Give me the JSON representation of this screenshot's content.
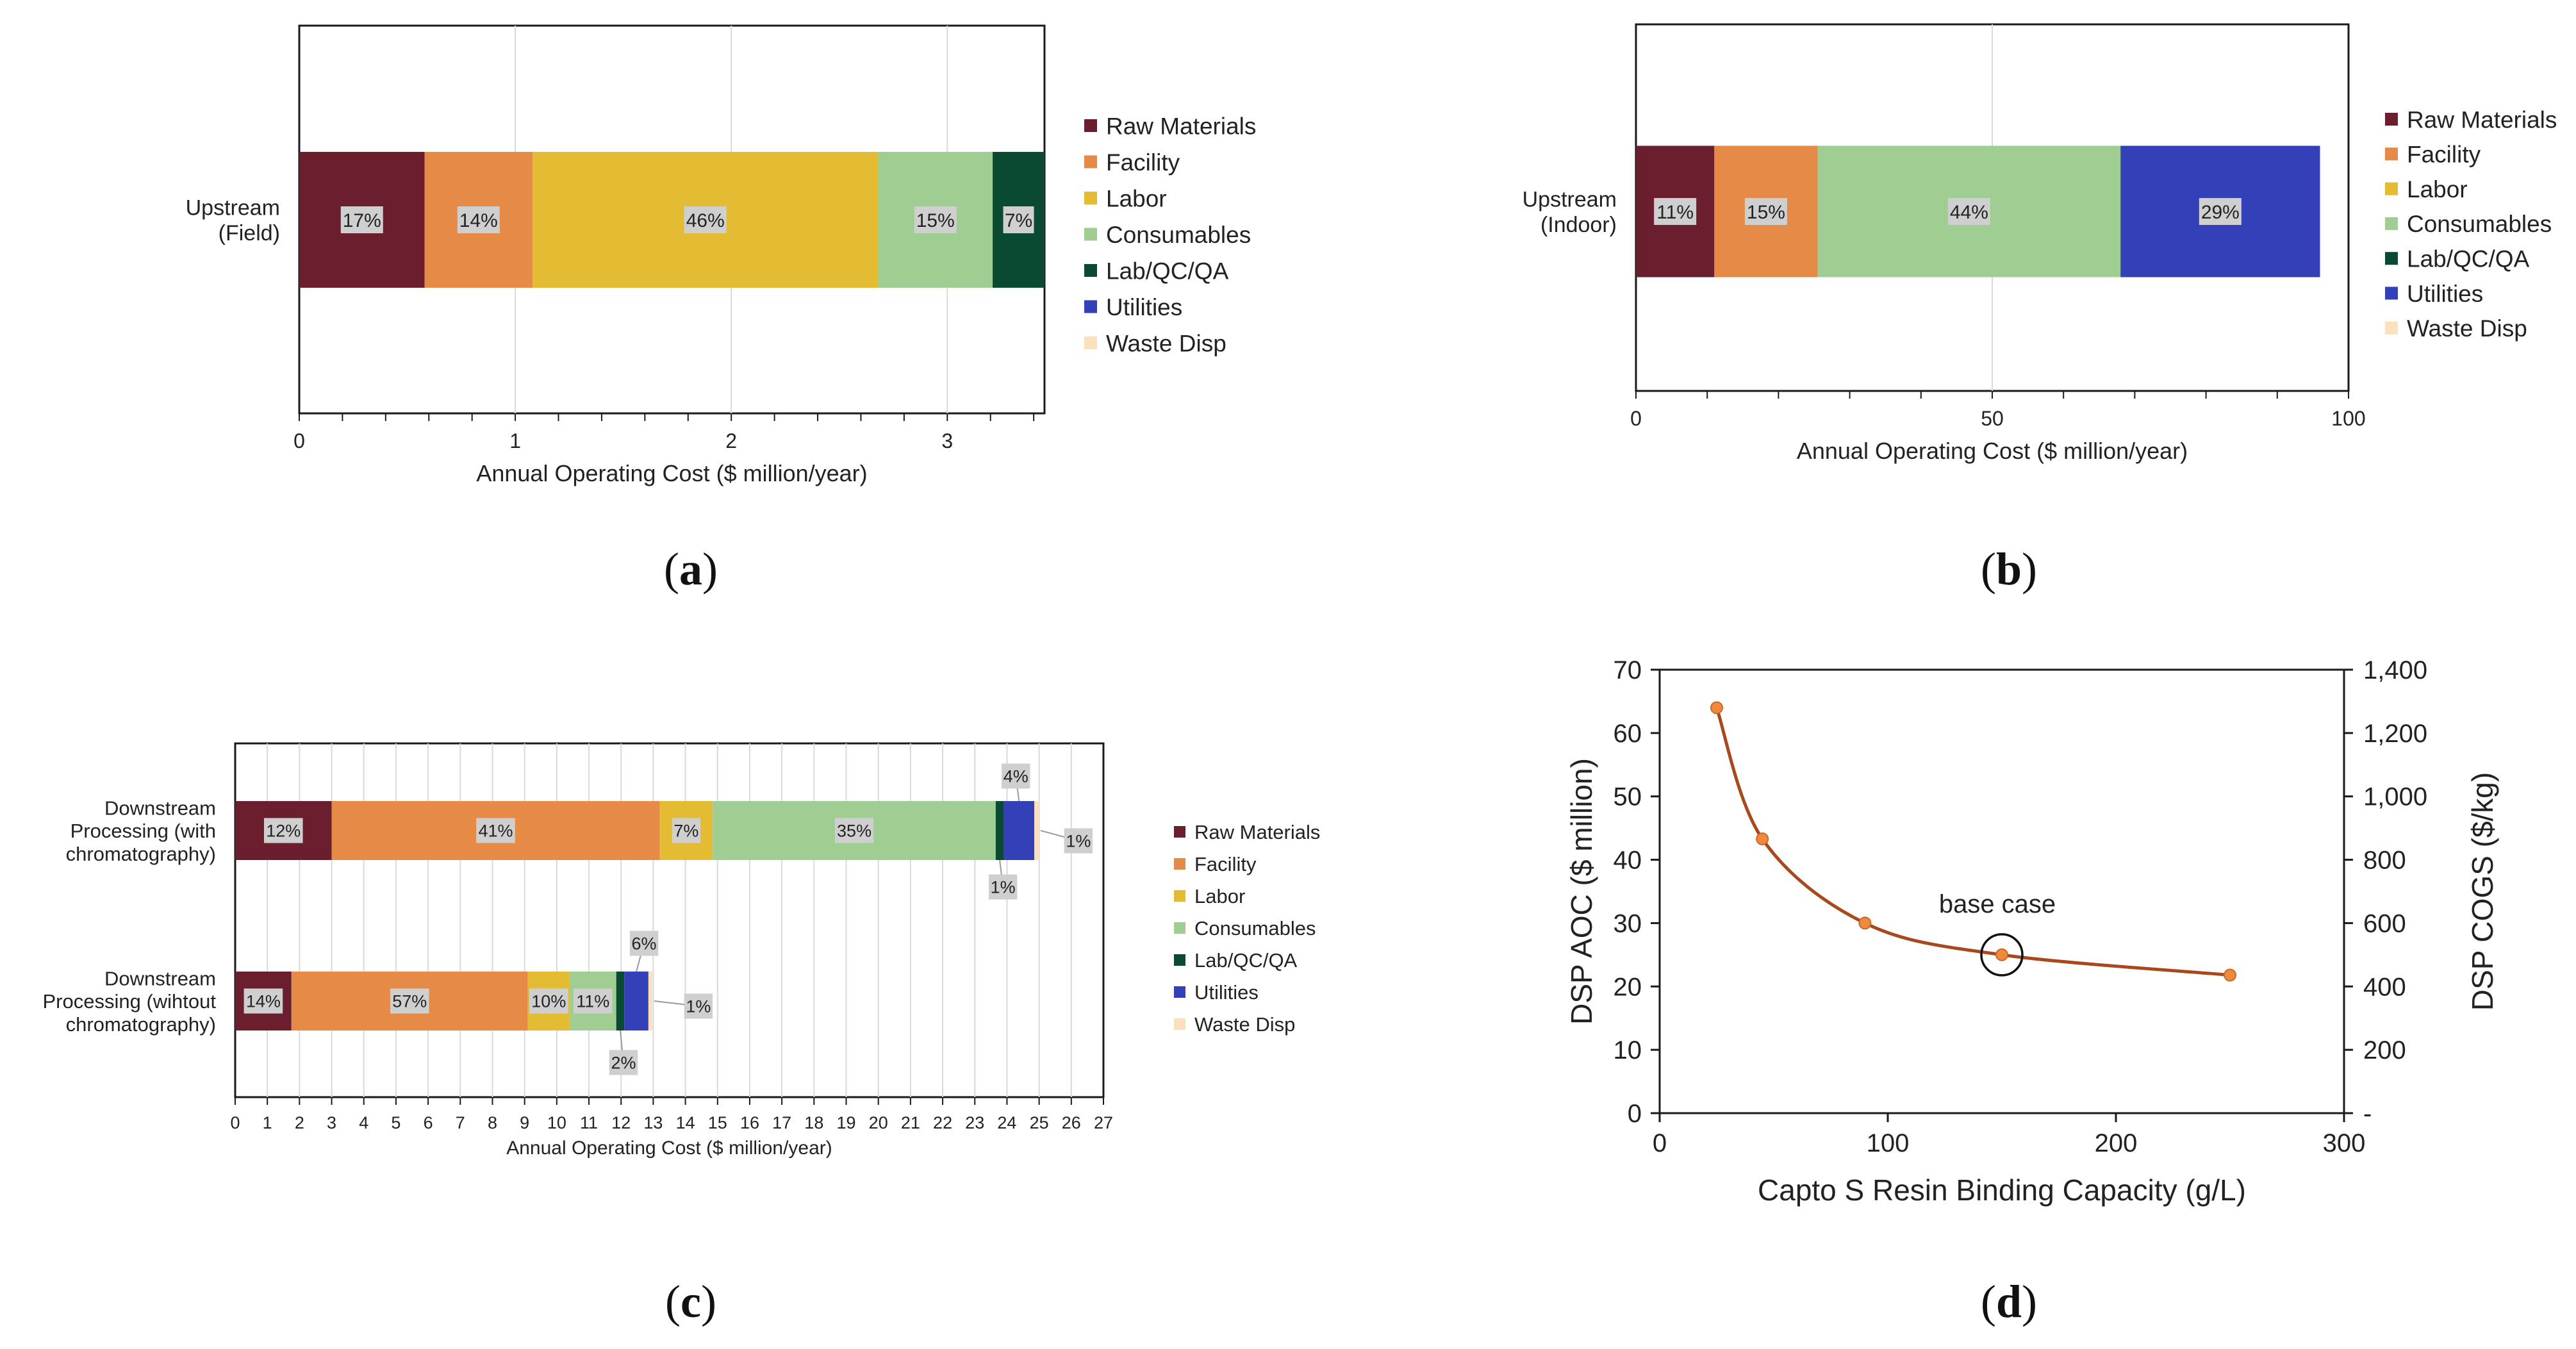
{
  "figure": {
    "panels": [
      {
        "key": "a",
        "letter": "a"
      },
      {
        "key": "b",
        "letter": "b"
      },
      {
        "key": "c",
        "letter": "c"
      },
      {
        "key": "d",
        "letter": "d"
      }
    ]
  },
  "colors": {
    "Raw Materials": "#6b1f2e",
    "Facility": "#e58a47",
    "Labor": "#e3bc33",
    "Consumables": "#9fcd92",
    "Lab/QC/QA": "#0b4a32",
    "Utilities": "#3440b8",
    "Waste Disp": "#fbe0bd",
    "line": "#a8481c",
    "marker": "#ef8a3c"
  },
  "chart_data": [
    {
      "id": "a",
      "type": "bar",
      "orientation": "horizontal",
      "stacked": true,
      "xlabel": "Annual Operating Cost ($ million/year)",
      "xlim": [
        0,
        3.45
      ],
      "xticks": [
        "0",
        "1",
        "2",
        "3"
      ],
      "xtick_values": [
        0,
        1,
        2,
        3
      ],
      "legend": [
        "Raw Materials",
        "Facility",
        "Labor",
        "Consumables",
        "Lab/QC/QA",
        "Utilities",
        "Waste Disp"
      ],
      "bars": [
        {
          "category": "Upstream\n(Field)",
          "category_lines": [
            "Upstream",
            "(Field)"
          ],
          "segments": [
            {
              "name": "Raw Materials",
              "value": 0.58,
              "label": "17%"
            },
            {
              "name": "Facility",
              "value": 0.5,
              "label": "14%"
            },
            {
              "name": "Labor",
              "value": 1.6,
              "label": "46%"
            },
            {
              "name": "Consumables",
              "value": 0.53,
              "label": "15%"
            },
            {
              "name": "Lab/QC/QA",
              "value": 0.24,
              "label": "7%"
            }
          ]
        }
      ]
    },
    {
      "id": "b",
      "type": "bar",
      "orientation": "horizontal",
      "stacked": true,
      "xlabel": "Annual Operating Cost ($ million/year)",
      "xlim": [
        0,
        100
      ],
      "xticks": [
        "0",
        "50",
        "100"
      ],
      "xtick_values": [
        0,
        50,
        100
      ],
      "legend": [
        "Raw Materials",
        "Facility",
        "Labor",
        "Consumables",
        "Lab/QC/QA",
        "Utilities",
        "Waste Disp"
      ],
      "bars": [
        {
          "category": "Upstream\n(Indoor)",
          "category_lines": [
            "Upstream",
            "(Indoor)"
          ],
          "segments": [
            {
              "name": "Raw Materials",
              "value": 11,
              "label": "11%"
            },
            {
              "name": "Facility",
              "value": 14.5,
              "label": "15%"
            },
            {
              "name": "Consumables",
              "value": 42.5,
              "label": "44%"
            },
            {
              "name": "Utilities",
              "value": 28,
              "label": "29%"
            }
          ]
        }
      ]
    },
    {
      "id": "c",
      "type": "bar",
      "orientation": "horizontal",
      "stacked": true,
      "xlabel": "Annual Operating Cost ($ million/year)",
      "xlim": [
        0,
        27
      ],
      "xticks": [
        "0",
        "1",
        "2",
        "3",
        "4",
        "5",
        "6",
        "7",
        "8",
        "9",
        "10",
        "11",
        "12",
        "13",
        "14",
        "15",
        "16",
        "17",
        "18",
        "19",
        "20",
        "21",
        "22",
        "23",
        "24",
        "25",
        "26",
        "27"
      ],
      "xtick_values": [
        0,
        1,
        2,
        3,
        4,
        5,
        6,
        7,
        8,
        9,
        10,
        11,
        12,
        13,
        14,
        15,
        16,
        17,
        18,
        19,
        20,
        21,
        22,
        23,
        24,
        25,
        26,
        27
      ],
      "legend": [
        "Raw Materials",
        "Facility",
        "Labor",
        "Consumables",
        "Lab/QC/QA",
        "Utilities",
        "Waste Disp"
      ],
      "bars": [
        {
          "category": "Downstream\nProcessing (with\nchromatography)",
          "category_lines": [
            "Downstream",
            "Processing (with",
            "chromatography)"
          ],
          "segments": [
            {
              "name": "Raw Materials",
              "value": 3.0,
              "label": "12%"
            },
            {
              "name": "Facility",
              "value": 10.2,
              "label": "41%"
            },
            {
              "name": "Labor",
              "value": 1.65,
              "label": "7%"
            },
            {
              "name": "Consumables",
              "value": 8.8,
              "label": "35%"
            },
            {
              "name": "Lab/QC/QA",
              "value": 0.25,
              "label": "1%"
            },
            {
              "name": "Utilities",
              "value": 0.95,
              "label": "4%"
            },
            {
              "name": "Waste Disp",
              "value": 0.15,
              "label": "1%"
            }
          ]
        },
        {
          "category": "Downstream\nProcessing (wihtout\nchromatography)",
          "category_lines": [
            "Downstream",
            "Processing (wihtout",
            "chromatography)"
          ],
          "segments": [
            {
              "name": "Raw Materials",
              "value": 1.75,
              "label": "14%"
            },
            {
              "name": "Facility",
              "value": 7.35,
              "label": "57%"
            },
            {
              "name": "Labor",
              "value": 1.3,
              "label": "10%"
            },
            {
              "name": "Consumables",
              "value": 1.45,
              "label": "11%"
            },
            {
              "name": "Lab/QC/QA",
              "value": 0.25,
              "label": "2%"
            },
            {
              "name": "Utilities",
              "value": 0.75,
              "label": "6%"
            },
            {
              "name": "Waste Disp",
              "value": 0.12,
              "label": "1%"
            }
          ]
        }
      ]
    },
    {
      "id": "d",
      "type": "line",
      "xlabel": "Capto S Resin Binding Capacity (g/L)",
      "ylabel": "DSP AOC ($ million)",
      "y2label": "DSP COGS ($/kg)",
      "xlim": [
        0,
        300
      ],
      "ylim": [
        0,
        70
      ],
      "y2lim": [
        0,
        1400
      ],
      "xticks": [
        "0",
        "100",
        "200",
        "300"
      ],
      "xtick_values": [
        0,
        100,
        200,
        300
      ],
      "yticks": [
        "0",
        "10",
        "20",
        "30",
        "40",
        "50",
        "60",
        "70"
      ],
      "ytick_values": [
        0,
        10,
        20,
        30,
        40,
        50,
        60,
        70
      ],
      "y2ticks": [
        "-",
        "200",
        "400",
        "600",
        "800",
        "1,000",
        "1,200",
        "1,400"
      ],
      "y2tick_values": [
        0,
        200,
        400,
        600,
        800,
        1000,
        1200,
        1400
      ],
      "series": [
        {
          "name": "DSP AOC",
          "x": [
            25,
            45,
            90,
            150,
            250
          ],
          "y": [
            64,
            43.3,
            30,
            25,
            21.8
          ]
        }
      ],
      "annotation": {
        "text": "base case",
        "x": 150,
        "y": 25
      }
    }
  ]
}
